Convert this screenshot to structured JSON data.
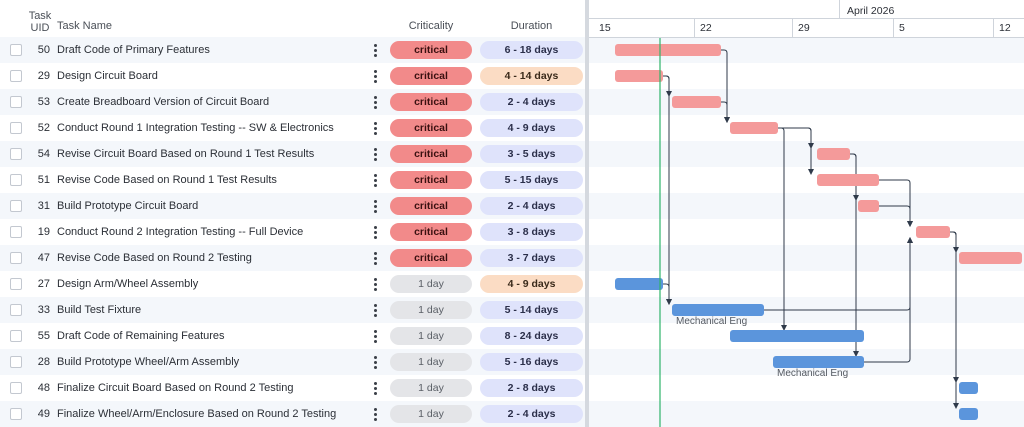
{
  "header": {
    "task_uid": "Task UID",
    "task_name": "Task Name",
    "criticality": "Criticality",
    "duration": "Duration"
  },
  "timeline": {
    "month": "April 2026",
    "weeks": [
      "15",
      "22",
      "29",
      "5",
      "12"
    ],
    "today_line_color": "#2fb36a"
  },
  "colors": {
    "critical_bar": "#f49a9a",
    "normal_bar": "#5b95dc",
    "dependency_arrow": "#2f3a4a"
  },
  "tasks": [
    {
      "uid": "50",
      "name": "Draft Code of Primary Features",
      "criticality": "critical",
      "duration": "6 - 18 days",
      "duration_tone": "blue"
    },
    {
      "uid": "29",
      "name": "Design Circuit Board",
      "criticality": "critical",
      "duration": "4 - 14 days",
      "duration_tone": "orange"
    },
    {
      "uid": "53",
      "name": "Create Breadboard Version of Circuit Board",
      "criticality": "critical",
      "duration": "2 - 4 days",
      "duration_tone": "blue"
    },
    {
      "uid": "52",
      "name": "Conduct Round 1 Integration Testing -- SW & Electronics",
      "criticality": "critical",
      "duration": "4 - 9 days",
      "duration_tone": "blue"
    },
    {
      "uid": "54",
      "name": "Revise Circuit Board Based on Round 1 Test Results",
      "criticality": "critical",
      "duration": "3 - 5 days",
      "duration_tone": "blue"
    },
    {
      "uid": "51",
      "name": "Revise Code Based on Round 1 Test Results",
      "criticality": "critical",
      "duration": "5 - 15 days",
      "duration_tone": "blue"
    },
    {
      "uid": "31",
      "name": "Build Prototype Circuit Board",
      "criticality": "critical",
      "duration": "2 - 4 days",
      "duration_tone": "blue"
    },
    {
      "uid": "19",
      "name": "Conduct Round 2 Integration Testing -- Full Device",
      "criticality": "critical",
      "duration": "3 - 8 days",
      "duration_tone": "blue"
    },
    {
      "uid": "47",
      "name": "Revise Code Based on Round 2 Testing",
      "criticality": "critical",
      "duration": "3 - 7 days",
      "duration_tone": "blue"
    },
    {
      "uid": "27",
      "name": "Design Arm/Wheel Assembly",
      "criticality": "1 day",
      "duration": "4 - 9 days",
      "duration_tone": "orange"
    },
    {
      "uid": "33",
      "name": "Build Test Fixture",
      "criticality": "1 day",
      "duration": "5 - 14 days",
      "duration_tone": "blue",
      "assignee": "Mechanical Eng"
    },
    {
      "uid": "55",
      "name": "Draft Code of Remaining Features",
      "criticality": "1 day",
      "duration": "8 - 24 days",
      "duration_tone": "blue"
    },
    {
      "uid": "28",
      "name": "Build Prototype Wheel/Arm Assembly",
      "criticality": "1 day",
      "duration": "5 - 16 days",
      "duration_tone": "blue",
      "assignee": "Mechanical Eng"
    },
    {
      "uid": "48",
      "name": "Finalize Circuit Board Based on Round 2 Testing",
      "criticality": "1 day",
      "duration": "2 - 8 days",
      "duration_tone": "blue"
    },
    {
      "uid": "49",
      "name": "Finalize Wheel/Arm/Enclosure Based on Round 2 Testing",
      "criticality": "1 day",
      "duration": "2 - 4 days",
      "duration_tone": "blue"
    }
  ]
}
